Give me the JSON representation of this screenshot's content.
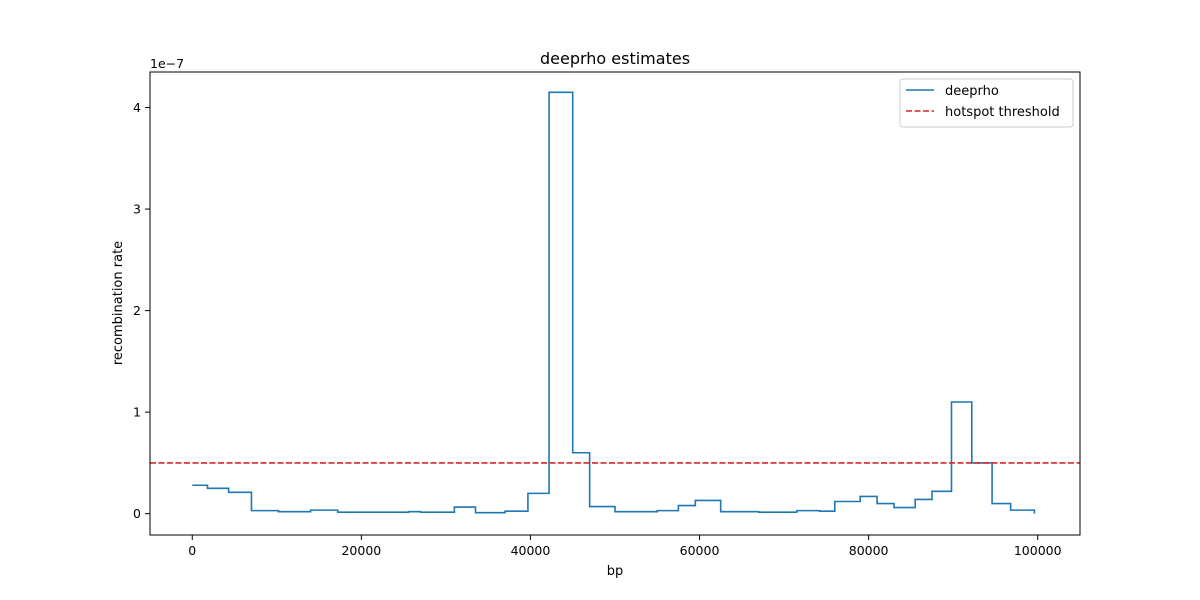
{
  "chart_data": {
    "type": "line",
    "title": "deeprho estimates",
    "xlabel": "bp",
    "ylabel": "recombination rate",
    "y_offset_label": "1e−7",
    "xlim": [
      -5000,
      105000
    ],
    "ylim": [
      -0.21,
      4.35
    ],
    "x_ticks": [
      0,
      20000,
      40000,
      60000,
      80000,
      100000
    ],
    "x_tick_labels": [
      "0",
      "20000",
      "40000",
      "60000",
      "80000",
      "100000"
    ],
    "y_ticks": [
      0,
      1,
      2,
      3,
      4
    ],
    "y_tick_labels": [
      "0",
      "1",
      "2",
      "3",
      "4"
    ],
    "legend_position": "top-right",
    "grid": false,
    "series": [
      {
        "name": "deeprho",
        "color": "#1f77b4",
        "style": "step",
        "x": [
          0,
          1800,
          1800,
          4300,
          4300,
          7000,
          7000,
          10200,
          10200,
          14000,
          14000,
          17200,
          17200,
          25600,
          25600,
          27000,
          27000,
          31000,
          31000,
          33500,
          33500,
          37000,
          37000,
          39700,
          39700,
          42200,
          42200,
          45000,
          45000,
          47000,
          47000,
          50000,
          50000,
          55000,
          55000,
          57500,
          57500,
          59500,
          59500,
          62500,
          62500,
          67000,
          67000,
          71500,
          71500,
          74200,
          74200,
          76000,
          76000,
          79000,
          79000,
          81000,
          81000,
          83000,
          83000,
          85500,
          85500,
          87500,
          87500,
          89800,
          89800,
          92200,
          92200,
          94600,
          94600,
          96800,
          96800,
          99600,
          99600
        ],
        "y": [
          0.28,
          0.28,
          0.25,
          0.25,
          0.21,
          0.21,
          0.03,
          0.03,
          0.02,
          0.02,
          0.035,
          0.035,
          0.015,
          0.015,
          0.02,
          0.02,
          0.015,
          0.015,
          0.065,
          0.065,
          0.01,
          0.01,
          0.025,
          0.025,
          0.2,
          0.2,
          4.15,
          4.15,
          0.6,
          0.6,
          0.07,
          0.07,
          0.02,
          0.02,
          0.03,
          0.03,
          0.08,
          0.08,
          0.13,
          0.13,
          0.02,
          0.02,
          0.015,
          0.015,
          0.03,
          0.03,
          0.025,
          0.025,
          0.12,
          0.12,
          0.17,
          0.17,
          0.1,
          0.1,
          0.06,
          0.06,
          0.14,
          0.14,
          0.22,
          0.22,
          1.1,
          1.1,
          0.5,
          0.5,
          0.1,
          0.1,
          0.035,
          0.035,
          0.0
        ]
      },
      {
        "name": "hotspot threshold",
        "color": "#d62728",
        "style": "dashed",
        "y_constant": 0.5
      }
    ]
  }
}
